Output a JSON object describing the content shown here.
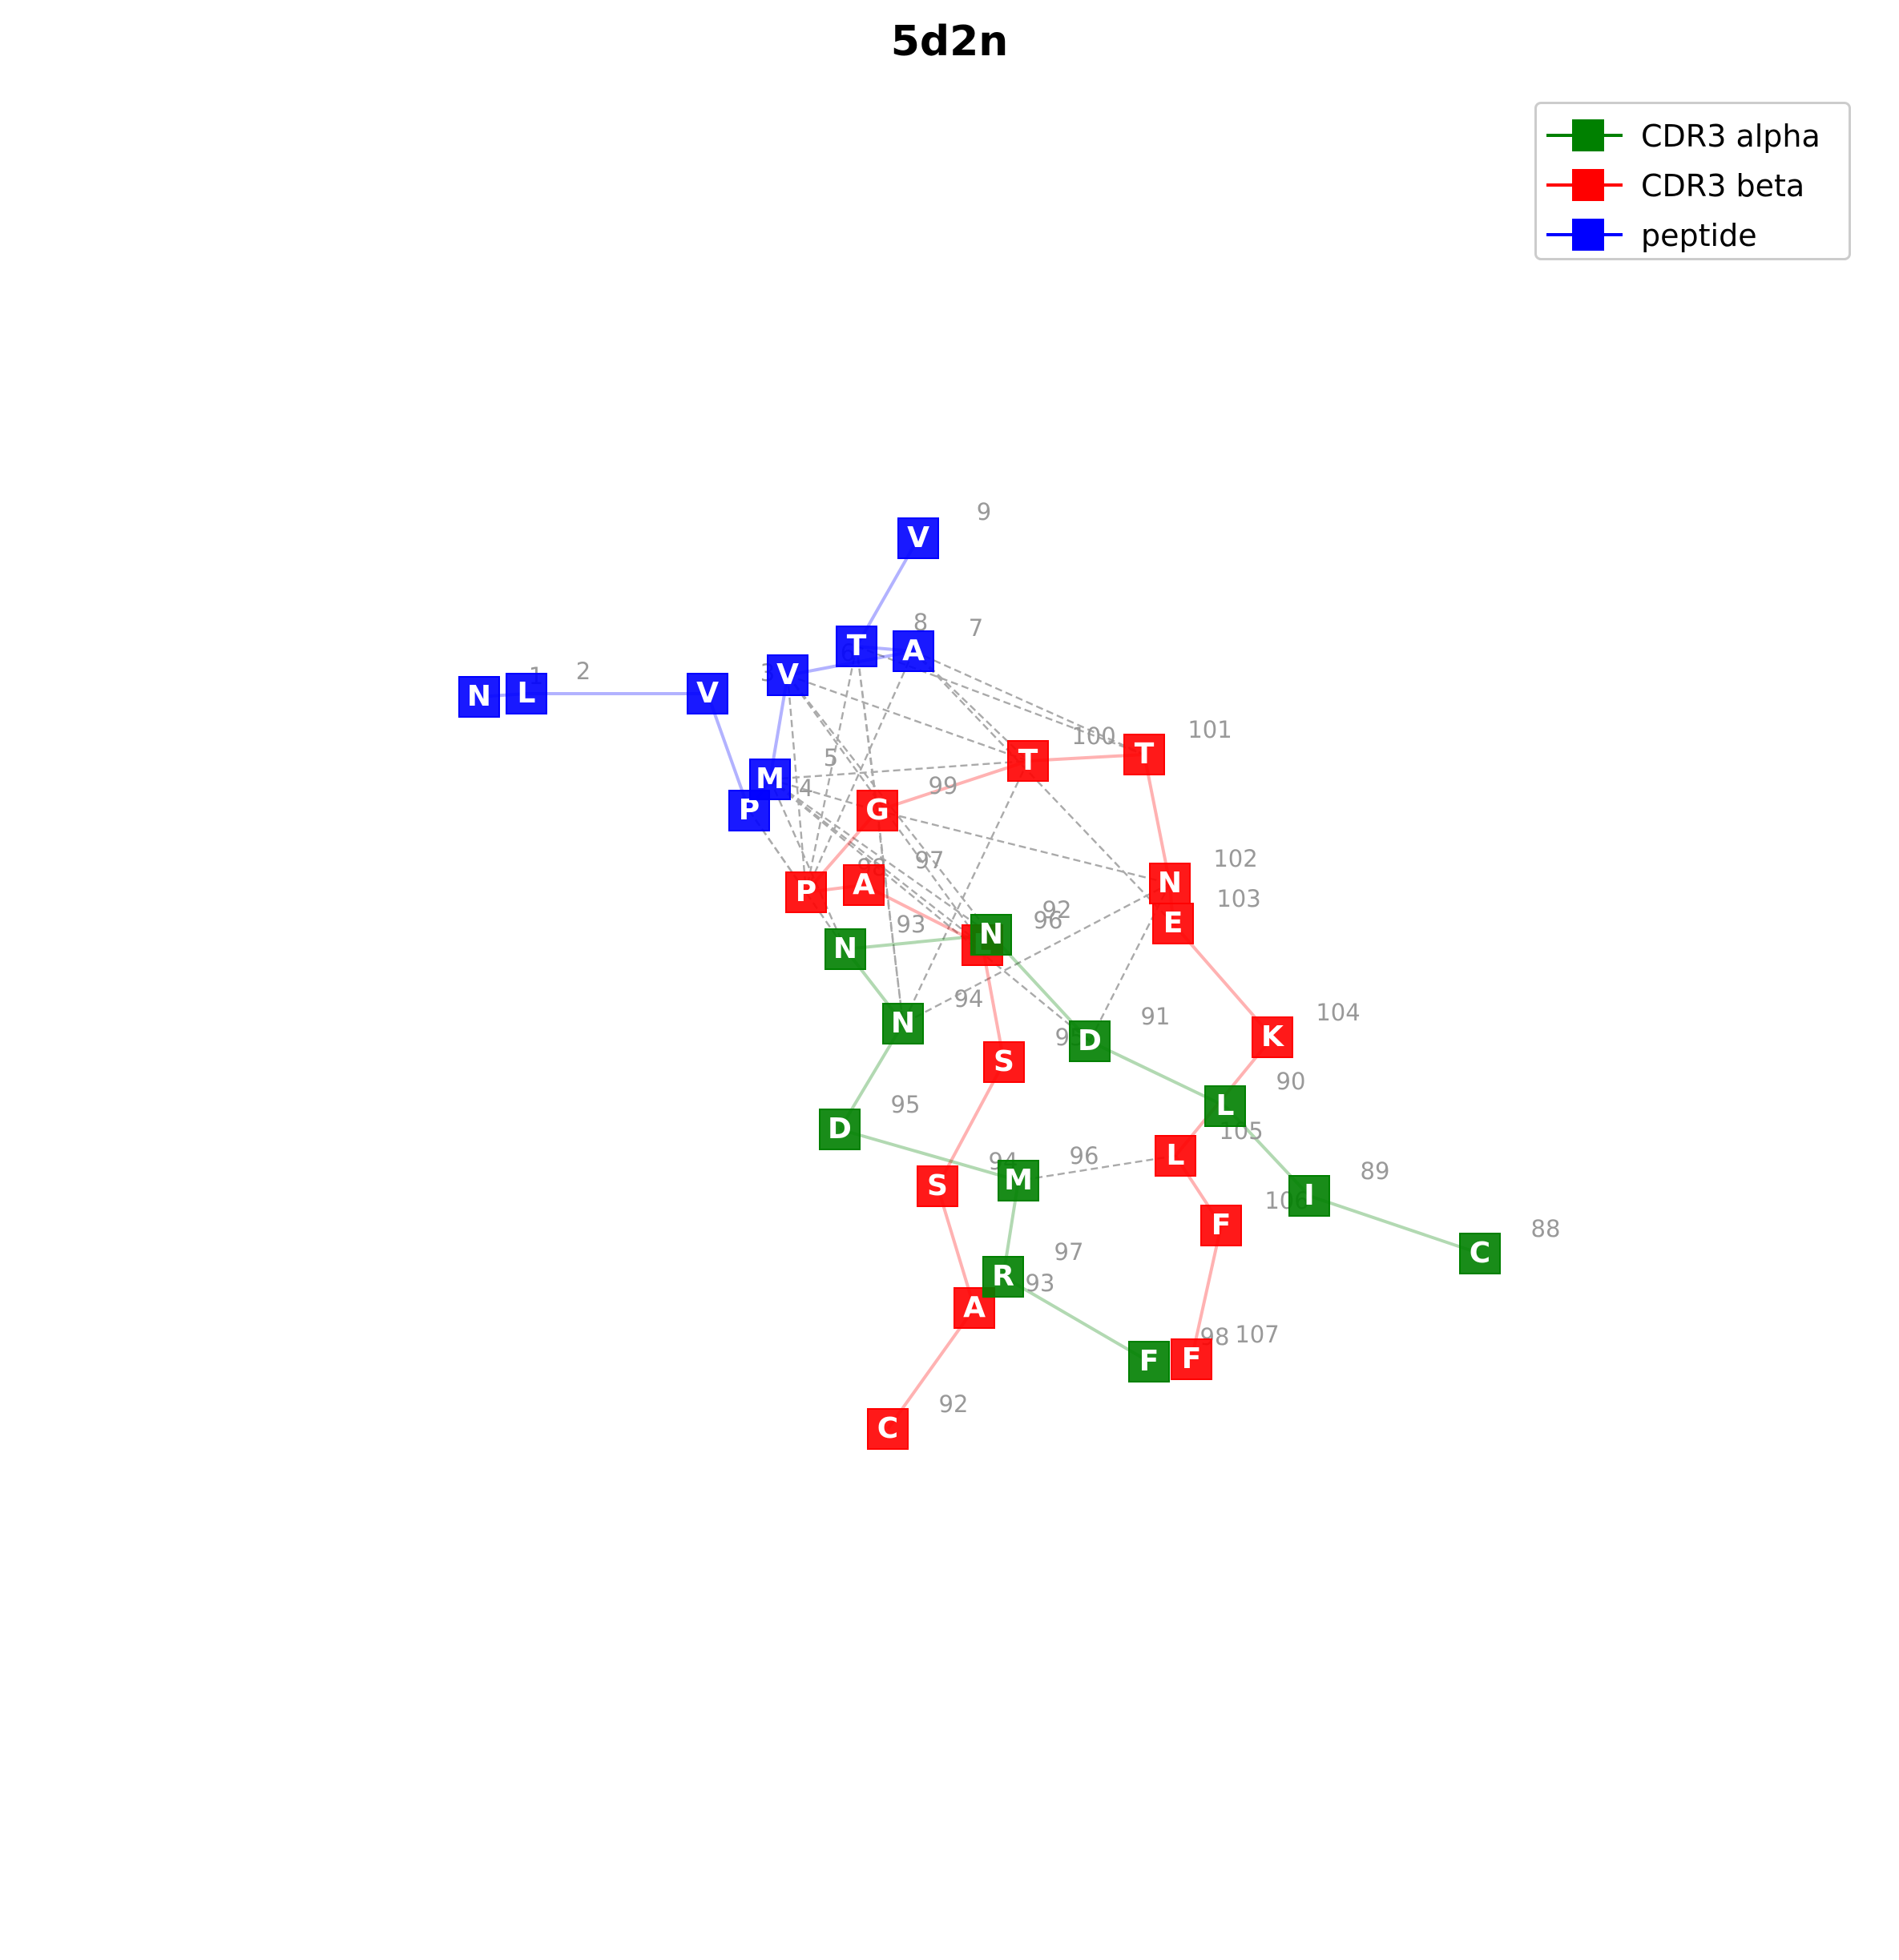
{
  "title": "5d2n",
  "colors": {
    "alpha": "#008000",
    "beta": "#ff0000",
    "peptide": "#0000ff",
    "contact": "#aaaaaa",
    "num": "#999999"
  },
  "legend": [
    {
      "label": "CDR3 alpha",
      "chain": "alpha"
    },
    {
      "label": "CDR3 beta",
      "chain": "beta"
    },
    {
      "label": "peptide",
      "chain": "peptide"
    }
  ],
  "nodes": [
    {
      "id": "p1",
      "chain": "peptide",
      "letter": "N",
      "num": "1"
    },
    {
      "id": "p2",
      "chain": "peptide",
      "letter": "L",
      "num": "2"
    },
    {
      "id": "p3",
      "chain": "peptide",
      "letter": "V",
      "num": "3"
    },
    {
      "id": "p4",
      "chain": "peptide",
      "letter": "P",
      "num": "4"
    },
    {
      "id": "p5",
      "chain": "peptide",
      "letter": "M",
      "num": "5"
    },
    {
      "id": "p6",
      "chain": "peptide",
      "letter": "V",
      "num": "6"
    },
    {
      "id": "p7",
      "chain": "peptide",
      "letter": "A",
      "num": "7"
    },
    {
      "id": "p8",
      "chain": "peptide",
      "letter": "T",
      "num": "8"
    },
    {
      "id": "p9",
      "chain": "peptide",
      "letter": "V",
      "num": "9"
    },
    {
      "id": "b92",
      "chain": "beta",
      "letter": "C",
      "num": "92"
    },
    {
      "id": "b93",
      "chain": "beta",
      "letter": "A",
      "num": "93"
    },
    {
      "id": "b94",
      "chain": "beta",
      "letter": "S",
      "num": "94"
    },
    {
      "id": "b95",
      "chain": "beta",
      "letter": "S",
      "num": "95"
    },
    {
      "id": "b96",
      "chain": "beta",
      "letter": "L",
      "num": "96"
    },
    {
      "id": "b97",
      "chain": "beta",
      "letter": "A",
      "num": "97"
    },
    {
      "id": "b98",
      "chain": "beta",
      "letter": "P",
      "num": "98"
    },
    {
      "id": "b99",
      "chain": "beta",
      "letter": "G",
      "num": "99"
    },
    {
      "id": "b100",
      "chain": "beta",
      "letter": "T",
      "num": "100"
    },
    {
      "id": "b101",
      "chain": "beta",
      "letter": "T",
      "num": "101"
    },
    {
      "id": "b102",
      "chain": "beta",
      "letter": "N",
      "num": "102"
    },
    {
      "id": "b103",
      "chain": "beta",
      "letter": "E",
      "num": "103"
    },
    {
      "id": "b104",
      "chain": "beta",
      "letter": "K",
      "num": "104"
    },
    {
      "id": "b105",
      "chain": "beta",
      "letter": "L",
      "num": "105"
    },
    {
      "id": "b106",
      "chain": "beta",
      "letter": "F",
      "num": "106"
    },
    {
      "id": "b107",
      "chain": "beta",
      "letter": "F",
      "num": "107"
    },
    {
      "id": "a88",
      "chain": "alpha",
      "letter": "C",
      "num": "88"
    },
    {
      "id": "a89",
      "chain": "alpha",
      "letter": "I",
      "num": "89"
    },
    {
      "id": "a90",
      "chain": "alpha",
      "letter": "L",
      "num": "90"
    },
    {
      "id": "a91",
      "chain": "alpha",
      "letter": "D",
      "num": "91"
    },
    {
      "id": "a92",
      "chain": "alpha",
      "letter": "N",
      "num": "92"
    },
    {
      "id": "a93",
      "chain": "alpha",
      "letter": "N",
      "num": "93"
    },
    {
      "id": "a94",
      "chain": "alpha",
      "letter": "N",
      "num": "94"
    },
    {
      "id": "a95",
      "chain": "alpha",
      "letter": "D",
      "num": "95"
    },
    {
      "id": "a96",
      "chain": "alpha",
      "letter": "M",
      "num": "96"
    },
    {
      "id": "a97",
      "chain": "alpha",
      "letter": "R",
      "num": "97"
    },
    {
      "id": "a98",
      "chain": "alpha",
      "letter": "F",
      "num": "98"
    }
  ],
  "backbone": [
    [
      "p1",
      "p2"
    ],
    [
      "p2",
      "p3"
    ],
    [
      "p3",
      "p4"
    ],
    [
      "p4",
      "p5"
    ],
    [
      "p5",
      "p6"
    ],
    [
      "p6",
      "p7"
    ],
    [
      "p7",
      "p8"
    ],
    [
      "p8",
      "p9"
    ],
    [
      "b92",
      "b93"
    ],
    [
      "b93",
      "b94"
    ],
    [
      "b94",
      "b95"
    ],
    [
      "b95",
      "b96"
    ],
    [
      "b96",
      "b97"
    ],
    [
      "b97",
      "b98"
    ],
    [
      "b98",
      "b99"
    ],
    [
      "b99",
      "b100"
    ],
    [
      "b100",
      "b101"
    ],
    [
      "b101",
      "b102"
    ],
    [
      "b102",
      "b103"
    ],
    [
      "b103",
      "b104"
    ],
    [
      "b104",
      "b105"
    ],
    [
      "b105",
      "b106"
    ],
    [
      "b106",
      "b107"
    ],
    [
      "a88",
      "a89"
    ],
    [
      "a89",
      "a90"
    ],
    [
      "a90",
      "a91"
    ],
    [
      "a91",
      "a92"
    ],
    [
      "a92",
      "a93"
    ],
    [
      "a93",
      "a94"
    ],
    [
      "a94",
      "a95"
    ],
    [
      "a95",
      "a96"
    ],
    [
      "a96",
      "a97"
    ],
    [
      "a97",
      "a98"
    ]
  ],
  "contacts": [
    [
      "p6",
      "b100"
    ],
    [
      "p6",
      "b98"
    ],
    [
      "p6",
      "a92"
    ],
    [
      "p6",
      "b96"
    ],
    [
      "p7",
      "b100"
    ],
    [
      "p7",
      "b101"
    ],
    [
      "p7",
      "b98"
    ],
    [
      "p7",
      "b103"
    ],
    [
      "p8",
      "b101"
    ],
    [
      "p8",
      "b99"
    ],
    [
      "p8",
      "b98"
    ],
    [
      "p8",
      "a94"
    ],
    [
      "p5",
      "b100"
    ],
    [
      "p5",
      "b99"
    ],
    [
      "p5",
      "b96"
    ],
    [
      "p5",
      "a92"
    ],
    [
      "p5",
      "a93"
    ],
    [
      "p5",
      "a91"
    ],
    [
      "p4",
      "b98"
    ],
    [
      "p4",
      "a93"
    ],
    [
      "b99",
      "b102"
    ],
    [
      "b99",
      "a94"
    ],
    [
      "b100",
      "a94"
    ],
    [
      "b102",
      "a94"
    ],
    [
      "b102",
      "a91"
    ],
    [
      "b105",
      "a96"
    ]
  ]
}
